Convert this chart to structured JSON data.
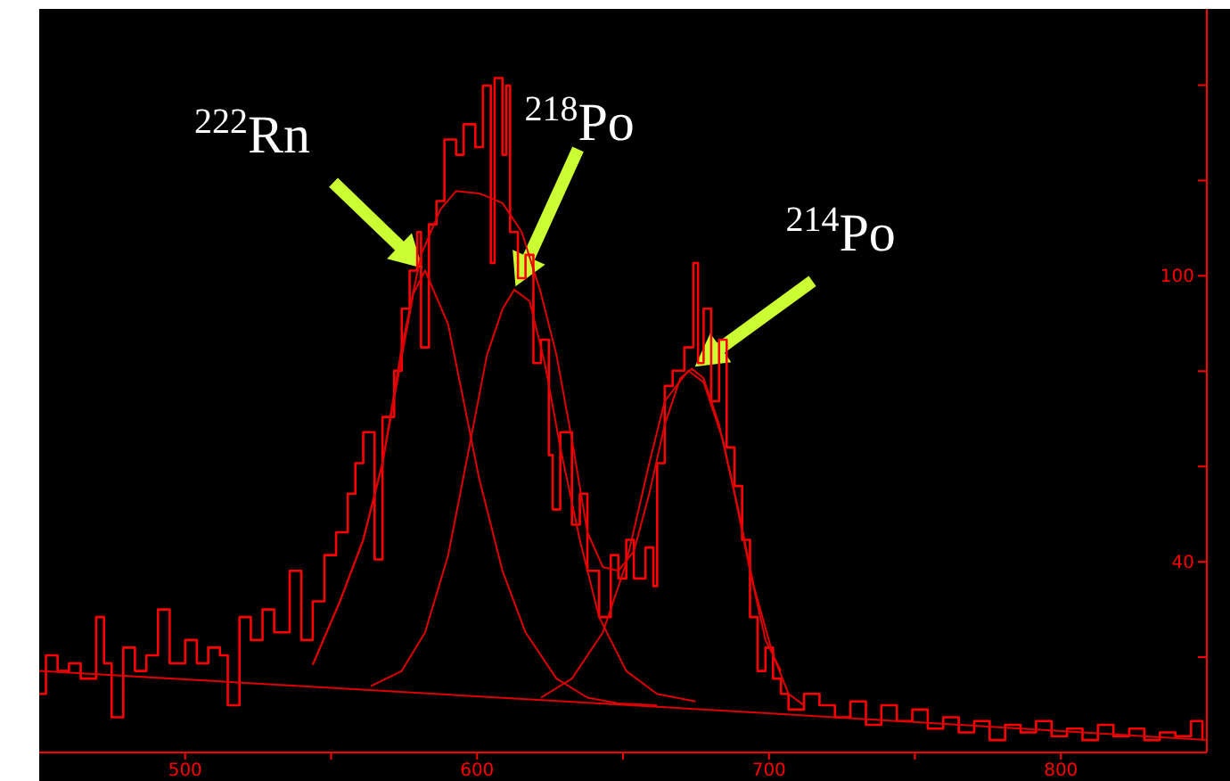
{
  "chart_data": {
    "type": "line",
    "xlim": [
      450,
      850
    ],
    "ylim": [
      0,
      156
    ],
    "xticks": [
      500,
      {
        "value": 550,
        "label": null
      },
      600,
      {
        "value": 650,
        "label": null
      },
      700,
      {
        "value": 750,
        "label": null
      },
      800
    ],
    "yticks": [
      {
        "value": 20,
        "label": null
      },
      40,
      {
        "value": 60,
        "label": null
      },
      {
        "value": 80,
        "label": null
      },
      100,
      {
        "value": 120,
        "label": null
      },
      {
        "value": 140,
        "label": null
      }
    ],
    "series": [
      {
        "type": "step",
        "color": "#ff0000",
        "x": [
          450,
          452.3,
          456.3,
          460.2,
          464.2,
          469.5,
          472.2,
          474.8,
          478.8,
          482.8,
          486.7,
          490.7,
          494.7,
          500,
          504,
          507.9,
          511.9,
          514.6,
          518.6,
          522.5,
          526.5,
          530.5,
          535.8,
          539.8,
          543.7,
          547.7,
          551.7,
          555.7,
          558.3,
          561,
          564.9,
          567.6,
          571.6,
          574.2,
          576.9,
          579.5,
          580.8,
          583.5,
          586.1,
          588.8,
          592.8,
          595.4,
          599.4,
          602,
          604.7,
          606,
          608.7,
          610,
          611.3,
          614,
          616.6,
          619.3,
          621.9,
          624.6,
          625.9,
          628.5,
          632.5,
          635.2,
          637.8,
          641.8,
          645.8,
          648.4,
          651.1,
          653.7,
          657.7,
          660.4,
          661.7,
          664.3,
          667,
          671,
          674.1,
          675.7,
          677.6,
          680.2,
          682.9,
          685.5,
          688.2,
          690.8,
          693.5,
          696.1,
          698.8,
          701.4,
          704.1,
          706.7,
          712,
          717.3,
          722.6,
          727.9,
          733.2,
          738.5,
          743.8,
          749.1,
          754.4,
          759.7,
          765,
          770.3,
          775.6,
          780.9,
          786.2,
          791.5,
          796.8,
          802.1,
          807.4,
          812.7,
          818,
          823.4,
          828.6,
          833.9,
          839.2,
          844.6,
          848.5
        ],
        "values": [
          12.3,
          20.4,
          17.1,
          18.7,
          15.5,
          28.4,
          18.7,
          7.4,
          22,
          17.1,
          20.4,
          30,
          18.7,
          23.6,
          18.7,
          22,
          20.4,
          9.9,
          28.4,
          23.6,
          30,
          25.2,
          38.1,
          23.6,
          31.7,
          41.4,
          46.2,
          54.3,
          60.7,
          67.2,
          40.5,
          70.4,
          80.1,
          93.1,
          101.1,
          109.2,
          85,
          110.8,
          115.7,
          128.6,
          125.4,
          131.8,
          127,
          139.9,
          102.7,
          141.5,
          125.4,
          139.9,
          109.2,
          99.5,
          104.4,
          81.7,
          86.6,
          62.4,
          51,
          67.2,
          47.8,
          54.3,
          38.1,
          28.4,
          41.4,
          36.5,
          44.6,
          36.5,
          43,
          34.9,
          60.7,
          76.9,
          80.1,
          85,
          102.7,
          81.7,
          93.1,
          73.7,
          86.6,
          64,
          55.9,
          44.6,
          28.4,
          17.1,
          22,
          15.5,
          12.3,
          9,
          12.3,
          9.9,
          7.4,
          10.7,
          5.8,
          9.9,
          6.6,
          9,
          5,
          7.4,
          4.2,
          6.6,
          2.6,
          5.8,
          4.2,
          6.6,
          3.4,
          5,
          2.6,
          5.8,
          3.4,
          5,
          2.6,
          4.2,
          3.4,
          6.6,
          2.6
        ]
      },
      {
        "color": "#dd0000",
        "x": [
          450,
          701,
          850
        ],
        "values": [
          17.1,
          8.2,
          2.6
        ]
      },
      {
        "color": "#dd0000",
        "x": [
          543.7,
          553,
          561,
          567.6,
          574.2,
          580.8,
          587.5,
          592.8,
          600.7,
          608.7,
          615.3,
          621.9,
          627.2,
          632.5,
          637.8,
          643.1,
          648.4,
          653.7,
          659,
          664.3,
          669.6,
          673.6,
          677.6,
          682.9,
          688.2,
          693.5,
          698.8,
          704.1
        ],
        "values": [
          18.4,
          31.7,
          44.6,
          60.7,
          85,
          104.4,
          114,
          117.8,
          117.3,
          115.3,
          109.2,
          96.3,
          83.4,
          65.6,
          46.2,
          38.9,
          38.1,
          42.2,
          54.3,
          68.8,
          78.5,
          80.5,
          78.5,
          68.8,
          54.3,
          38.1,
          23.6,
          17.1
        ]
      },
      {
        "color": "#dd0000",
        "x": [
          543.7,
          553,
          561,
          567.6,
          574.2,
          578.2,
          582.2,
          590.1,
          595.4,
          600.7,
          608.7,
          616.6,
          627.2,
          637.8,
          648.4,
          661.6
        ],
        "values": [
          18.4,
          31.7,
          44.6,
          60.7,
          83,
          96.3,
          101.1,
          89.8,
          73.7,
          57.5,
          38.1,
          25.2,
          15.5,
          11.5,
          10.3,
          9.9
        ]
      },
      {
        "color": "#dd0000",
        "x": [
          563.6,
          574.2,
          582.2,
          590.1,
          596.8,
          603.4,
          608.7,
          612.7,
          618,
          623.2,
          628.5,
          635.2,
          641.8,
          651.1,
          661.6,
          674.9
        ],
        "values": [
          13.9,
          17.1,
          25.2,
          41.4,
          62.4,
          83.4,
          93,
          97.1,
          94.7,
          81.7,
          64,
          44.6,
          28.4,
          17.1,
          12.3,
          10.7
        ]
      },
      {
        "color": "#dd0000",
        "x": [
          621.9,
          632.5,
          643.1,
          651.1,
          659,
          664.3,
          672.3,
          677.6,
          684.2,
          689.5,
          694.8,
          701.4,
          706.7,
          712
        ],
        "values": [
          11.5,
          15.5,
          25.2,
          39.7,
          60.7,
          73.7,
          80.1,
          77.7,
          65.6,
          51,
          34.9,
          20.4,
          12.3,
          9.9
        ]
      }
    ],
    "annotations": [
      {
        "text": "$^{222}$Rn",
        "x": 582.2,
        "y": 101.1
      },
      {
        "text": "$^{218}$Po",
        "x": 612.7,
        "y": 97.1
      },
      {
        "text": "$^{214}$Po",
        "x": 673.6,
        "y": 80.5
      }
    ]
  }
}
